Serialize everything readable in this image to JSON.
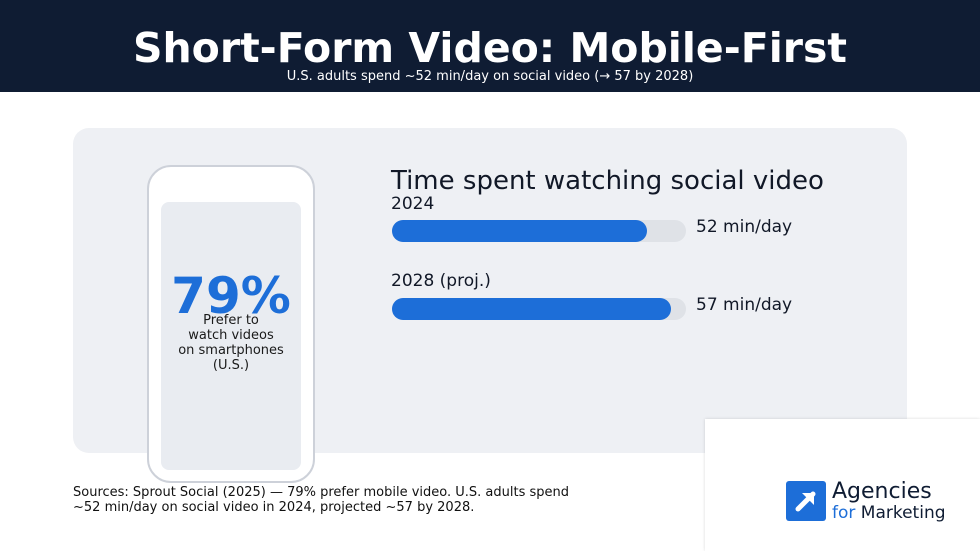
{
  "header": {
    "title": "Short-Form Video: Mobile-First",
    "subtitle": "U.S. adults spend ~52 min/day on social video (→ 57 by 2028)"
  },
  "stat": {
    "value": "79%",
    "caption_lines": [
      "Prefer to",
      "watch videos",
      "on smartphones",
      "(U.S.)"
    ]
  },
  "chart_data": {
    "type": "bar",
    "orientation": "horizontal",
    "title": "Time spent watching social video",
    "categories": [
      "2024",
      "2028 (proj.)"
    ],
    "values": [
      52,
      57
    ],
    "value_labels": [
      "52 min/day",
      "57 min/day"
    ],
    "unit": "min/day",
    "xlim": [
      0,
      60
    ],
    "grid": false,
    "colors": {
      "bar": "#1d6ed8",
      "track": "#dfe2e7"
    }
  },
  "sources": {
    "lines": [
      "Sources: Sprout Social (2025) — 79% prefer mobile video. U.S. adults spend",
      "~52 min/day on social video in 2024, projected ~57 by 2028."
    ]
  },
  "logo": {
    "line1": "Agencies",
    "line2_for": "for",
    "line2_rest": "Marketing",
    "icon": "arrow-up-right-icon"
  },
  "colors": {
    "header_bg": "#0f1c33",
    "accent": "#1d6ed8",
    "panel_bg": "#eef0f4"
  }
}
